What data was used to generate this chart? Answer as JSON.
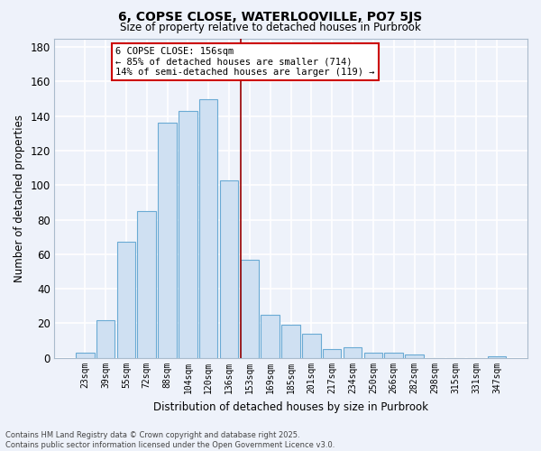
{
  "title": "6, COPSE CLOSE, WATERLOOVILLE, PO7 5JS",
  "subtitle": "Size of property relative to detached houses in Purbrook",
  "xlabel": "Distribution of detached houses by size in Purbrook",
  "ylabel": "Number of detached properties",
  "bar_labels": [
    "23sqm",
    "39sqm",
    "55sqm",
    "72sqm",
    "88sqm",
    "104sqm",
    "120sqm",
    "136sqm",
    "153sqm",
    "169sqm",
    "185sqm",
    "201sqm",
    "217sqm",
    "234sqm",
    "250sqm",
    "266sqm",
    "282sqm",
    "298sqm",
    "315sqm",
    "331sqm",
    "347sqm"
  ],
  "bar_values": [
    3,
    22,
    67,
    85,
    136,
    143,
    150,
    103,
    57,
    25,
    19,
    14,
    5,
    6,
    3,
    3,
    2,
    0,
    0,
    0,
    1
  ],
  "bar_color": "#cfe0f2",
  "bar_edge_color": "#6aaad4",
  "vline_color": "#990000",
  "annotation_title": "6 COPSE CLOSE: 156sqm",
  "annotation_line1": "← 85% of detached houses are smaller (714)",
  "annotation_line2": "14% of semi-detached houses are larger (119) →",
  "annotation_box_facecolor": "#ffffff",
  "annotation_box_edgecolor": "#cc0000",
  "ylim": [
    0,
    185
  ],
  "yticks": [
    0,
    20,
    40,
    60,
    80,
    100,
    120,
    140,
    160,
    180
  ],
  "footer_line1": "Contains HM Land Registry data © Crown copyright and database right 2025.",
  "footer_line2": "Contains public sector information licensed under the Open Government Licence v3.0.",
  "bg_color": "#eef2fa",
  "plot_bg_color": "#eef2fa",
  "grid_color": "#ffffff",
  "vline_bar_index": 8
}
